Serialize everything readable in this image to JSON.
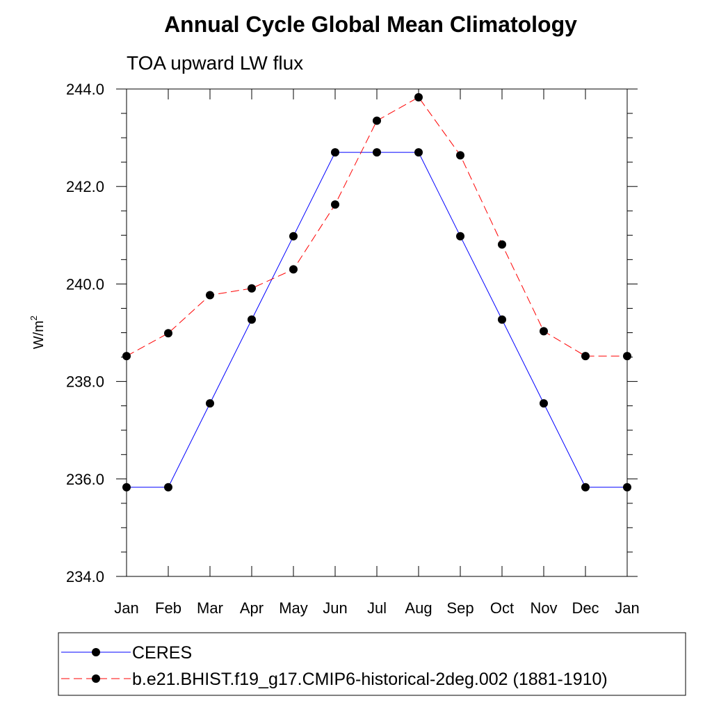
{
  "chart_data": {
    "type": "line",
    "title": "Annual Cycle Global Mean Climatology",
    "subtitle": "TOA upward LW flux",
    "ylabel": "W/m",
    "ylabel_sup": "2",
    "ylim": [
      234.0,
      244.0
    ],
    "yticks": [
      234.0,
      236.0,
      238.0,
      240.0,
      242.0,
      244.0
    ],
    "ytick_labels": [
      "234.0",
      "236.0",
      "238.0",
      "240.0",
      "242.0",
      "244.0"
    ],
    "categories": [
      "Jan",
      "Feb",
      "Mar",
      "Apr",
      "May",
      "Jun",
      "Jul",
      "Aug",
      "Sep",
      "Oct",
      "Nov",
      "Dec",
      "Jan"
    ],
    "grid": false,
    "legend_position": "bottom",
    "series": [
      {
        "name": "CERES",
        "color": "#0000ff",
        "dash": "solid",
        "marker": "circle",
        "values": [
          235.83,
          235.83,
          237.55,
          239.27,
          240.98,
          242.7,
          242.7,
          242.7,
          240.98,
          239.27,
          237.55,
          235.83,
          235.83
        ]
      },
      {
        "name": "b.e21.BHIST.f19_g17.CMIP6-historical-2deg.002 (1881-1910)",
        "color": "#ff0000",
        "dash": "dashed",
        "marker": "circle",
        "values": [
          238.52,
          238.99,
          239.77,
          239.91,
          240.3,
          241.63,
          243.35,
          243.83,
          242.64,
          240.81,
          239.03,
          238.52,
          238.52
        ]
      }
    ]
  }
}
